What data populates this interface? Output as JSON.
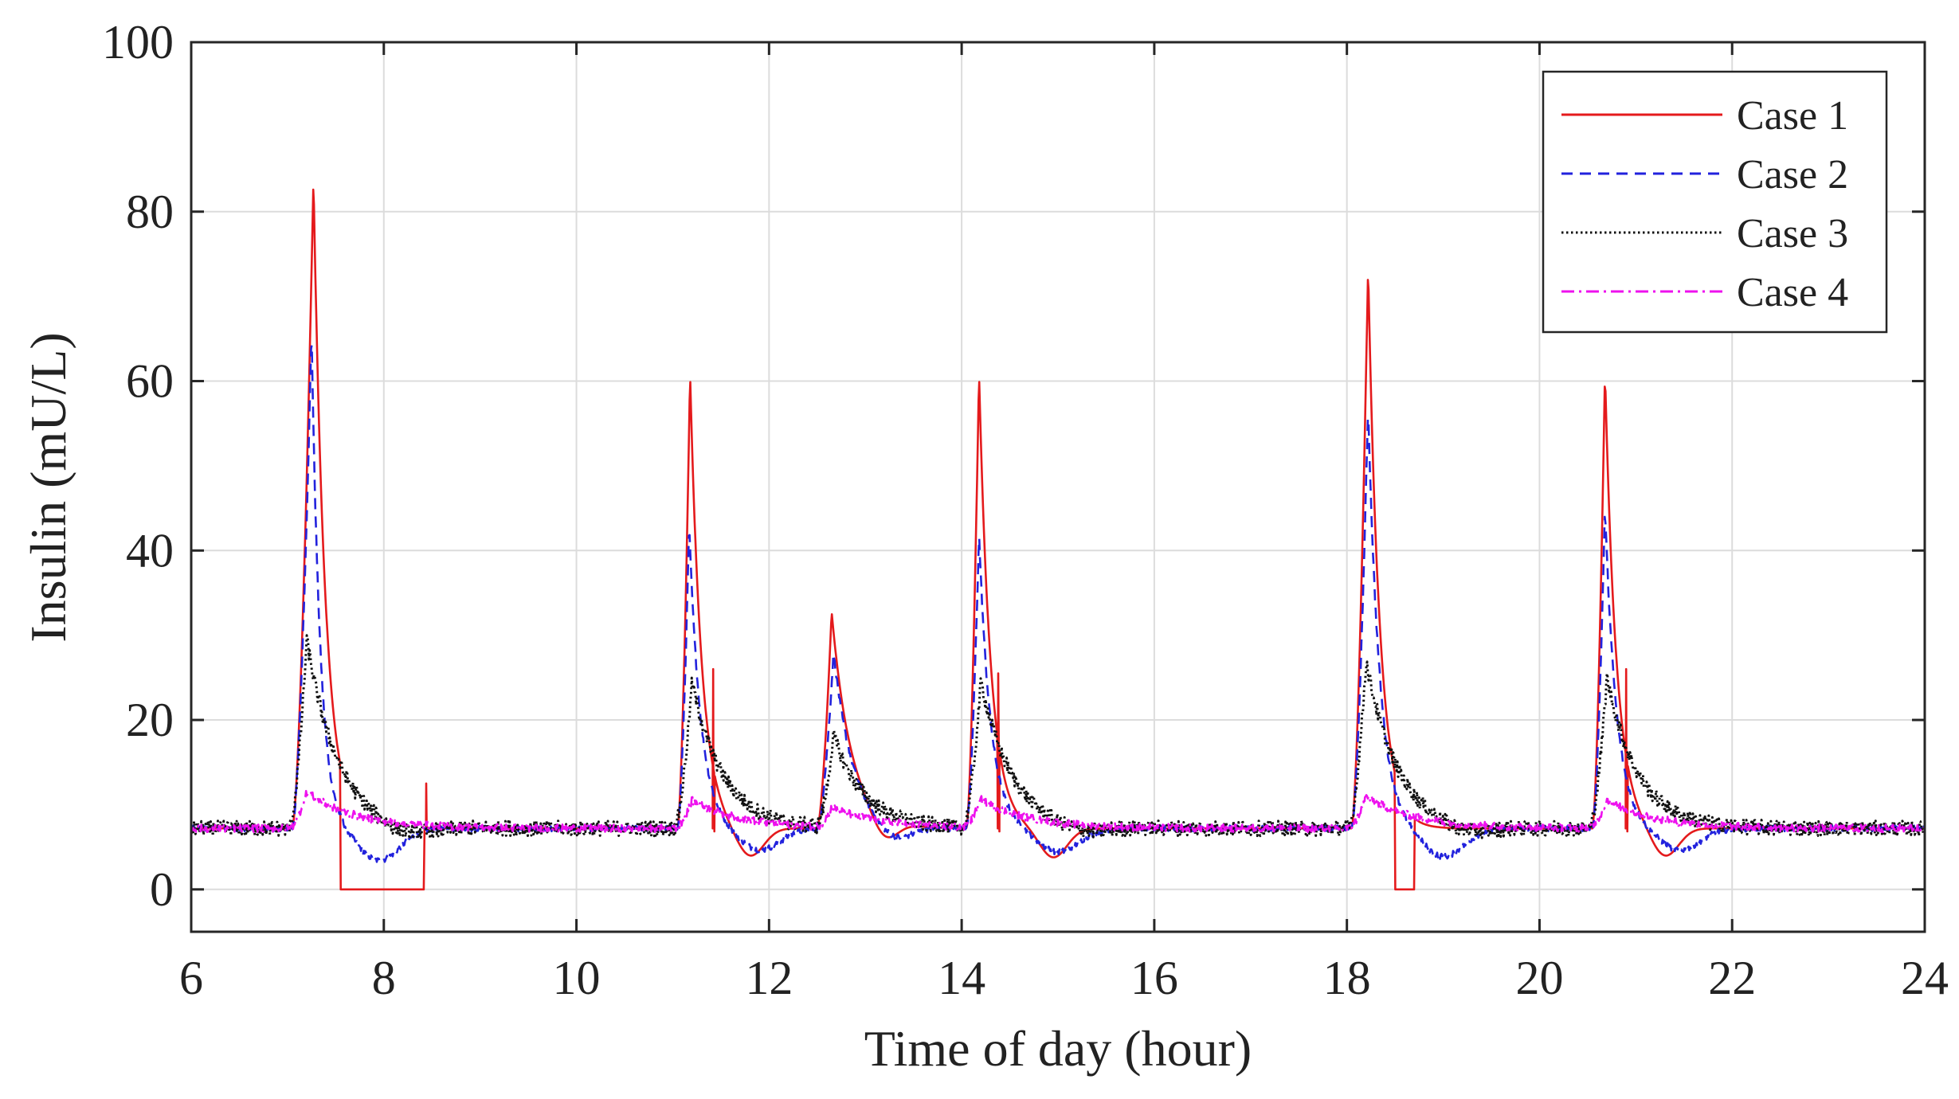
{
  "chart_data": {
    "type": "line",
    "title": "",
    "xlabel": "Time of day (hour)",
    "ylabel": "Insulin (mU/L)",
    "xlim": [
      6,
      24
    ],
    "ylim": [
      -5,
      100
    ],
    "xticks": [
      6,
      8,
      10,
      12,
      14,
      16,
      18,
      20,
      22,
      24
    ],
    "yticks": [
      0,
      20,
      40,
      60,
      80,
      100
    ],
    "grid": true,
    "legend_position": "top-right",
    "baseline": 7.2,
    "series": [
      {
        "name": "Case 1",
        "color": "#e41a1c",
        "dash": "solid",
        "noise": 0,
        "events": [
          {
            "type": "spike",
            "start": 7.05,
            "peak_time": 7.27,
            "peak": 84,
            "decay": 0.12
          },
          {
            "type": "spike",
            "start": 11.05,
            "peak_time": 11.18,
            "peak": 61,
            "decay": 0.12
          },
          {
            "type": "spike",
            "start": 12.5,
            "peak_time": 12.65,
            "peak": 32.8,
            "decay": 0.2
          },
          {
            "type": "spike",
            "start": 14.05,
            "peak_time": 14.18,
            "peak": 61,
            "decay": 0.12
          },
          {
            "type": "spike",
            "start": 18.05,
            "peak_time": 18.22,
            "peak": 73.5,
            "decay": 0.12
          },
          {
            "type": "spike",
            "start": 20.55,
            "peak_time": 20.68,
            "peak": 61,
            "decay": 0.12
          },
          {
            "type": "zero",
            "from": 7.55,
            "to": 8.42
          },
          {
            "type": "zero",
            "from": 18.5,
            "to": 18.7
          },
          {
            "type": "dip",
            "center": 11.8,
            "depth": 3.5,
            "width": 0.2
          },
          {
            "type": "dip",
            "center": 13.2,
            "depth": 2.5,
            "width": 0.18
          },
          {
            "type": "dip",
            "center": 14.95,
            "depth": 3.5,
            "width": 0.2
          },
          {
            "type": "dip",
            "center": 21.3,
            "depth": 3.5,
            "width": 0.2
          },
          {
            "type": "notch",
            "time": 8.44,
            "value": 12.5
          },
          {
            "type": "notch",
            "time": 11.42,
            "value": 26
          },
          {
            "type": "notch",
            "time": 14.38,
            "value": 25.5
          },
          {
            "type": "notch",
            "time": 20.9,
            "value": 26
          }
        ]
      },
      {
        "name": "Case 2",
        "color": "#2222dd",
        "dash": "dashed",
        "noise": 0.35,
        "events": [
          {
            "type": "spike",
            "start": 7.05,
            "peak_time": 7.25,
            "peak": 66,
            "decay": 0.09
          },
          {
            "type": "spike",
            "start": 11.05,
            "peak_time": 11.17,
            "peak": 43,
            "decay": 0.12
          },
          {
            "type": "spike",
            "start": 12.5,
            "peak_time": 12.67,
            "peak": 28,
            "decay": 0.2
          },
          {
            "type": "spike",
            "start": 14.05,
            "peak_time": 14.18,
            "peak": 42,
            "decay": 0.12
          },
          {
            "type": "spike",
            "start": 18.05,
            "peak_time": 18.22,
            "peak": 57,
            "decay": 0.12
          },
          {
            "type": "spike",
            "start": 20.55,
            "peak_time": 20.68,
            "peak": 45,
            "decay": 0.12
          },
          {
            "type": "dip",
            "center": 7.95,
            "depth": 3.8,
            "width": 0.3
          },
          {
            "type": "dip",
            "center": 11.9,
            "depth": 2.6,
            "width": 0.3
          },
          {
            "type": "dip",
            "center": 13.3,
            "depth": 1.8,
            "width": 0.25
          },
          {
            "type": "dip",
            "center": 15.0,
            "depth": 2.8,
            "width": 0.3
          },
          {
            "type": "dip",
            "center": 19.0,
            "depth": 3.4,
            "width": 0.3
          },
          {
            "type": "dip",
            "center": 21.45,
            "depth": 2.6,
            "width": 0.3
          }
        ]
      },
      {
        "name": "Case 3",
        "color": "#111111",
        "dash": "dotted",
        "noise": 0.9,
        "events": [
          {
            "type": "spike",
            "start": 7.02,
            "peak_time": 7.2,
            "peak": 29.5,
            "decay": 0.32
          },
          {
            "type": "spike",
            "start": 11.02,
            "peak_time": 11.2,
            "peak": 24.5,
            "decay": 0.32
          },
          {
            "type": "spike",
            "start": 12.5,
            "peak_time": 12.67,
            "peak": 18,
            "decay": 0.32
          },
          {
            "type": "spike",
            "start": 14.02,
            "peak_time": 14.2,
            "peak": 24.5,
            "decay": 0.32
          },
          {
            "type": "spike",
            "start": 18.02,
            "peak_time": 18.2,
            "peak": 27,
            "decay": 0.32
          },
          {
            "type": "spike",
            "start": 20.52,
            "peak_time": 20.7,
            "peak": 25,
            "decay": 0.32
          },
          {
            "type": "dip",
            "center": 8.2,
            "depth": 1.2,
            "width": 0.4
          },
          {
            "type": "dip",
            "center": 15.2,
            "depth": 0.8,
            "width": 0.4
          },
          {
            "type": "dip",
            "center": 19.2,
            "depth": 0.9,
            "width": 0.4
          }
        ]
      },
      {
        "name": "Case 4",
        "color": "#ee11ee",
        "dash": "dashdot",
        "noise": 0.45,
        "events": [
          {
            "type": "spike",
            "start": 7.02,
            "peak_time": 7.2,
            "peak": 11.5,
            "decay": 0.5
          },
          {
            "type": "spike",
            "start": 11.02,
            "peak_time": 11.2,
            "peak": 10.5,
            "decay": 0.5
          },
          {
            "type": "spike",
            "start": 12.5,
            "peak_time": 12.65,
            "peak": 9.5,
            "decay": 0.5
          },
          {
            "type": "spike",
            "start": 14.02,
            "peak_time": 14.2,
            "peak": 10.5,
            "decay": 0.5
          },
          {
            "type": "spike",
            "start": 18.02,
            "peak_time": 18.2,
            "peak": 11,
            "decay": 0.5
          },
          {
            "type": "spike",
            "start": 20.52,
            "peak_time": 20.7,
            "peak": 10.5,
            "decay": 0.5
          }
        ]
      }
    ]
  }
}
